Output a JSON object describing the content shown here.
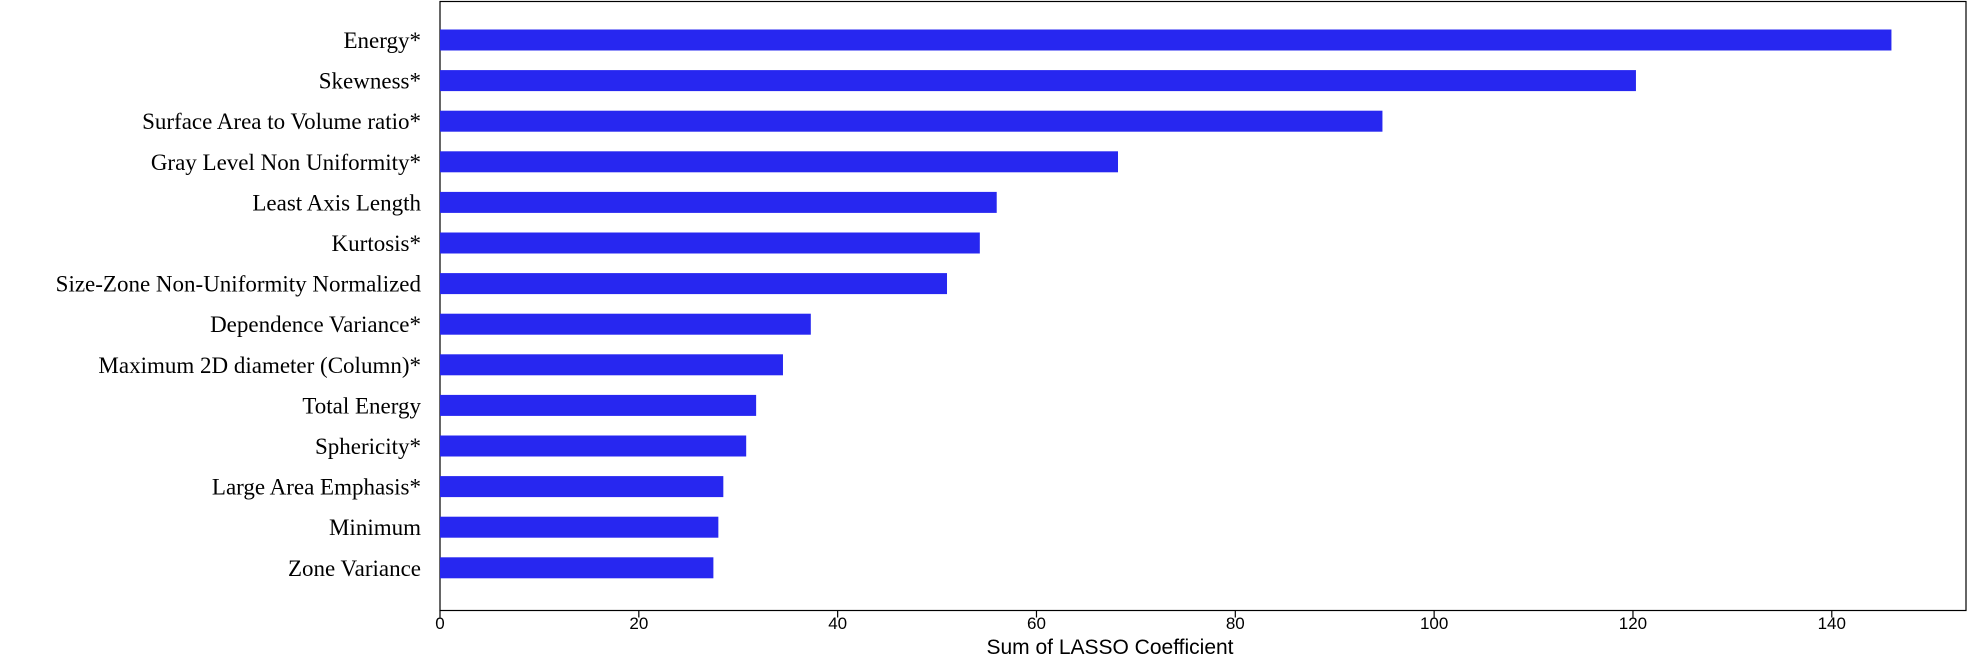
{
  "chart_data": {
    "type": "bar",
    "orientation": "horizontal",
    "categories": [
      "Energy*",
      "Skewness*",
      "Surface Area to Volume ratio*",
      "Gray Level Non Uniformity*",
      "Least Axis Length",
      "Kurtosis*",
      "Size-Zone Non-Uniformity Normalized",
      "Dependence Variance*",
      "Maximum 2D diameter (Column)*",
      "Total Energy",
      "Sphericity*",
      "Large Area Emphasis*",
      "Minimum",
      "Zone Variance"
    ],
    "values": [
      146.0,
      120.3,
      94.8,
      68.2,
      56.0,
      54.3,
      51.0,
      37.3,
      34.5,
      31.8,
      30.8,
      28.5,
      28.0,
      27.5
    ],
    "xlabel": "Sum of LASSO Coefficient",
    "ylabel": "",
    "title": "",
    "xlim": [
      0,
      153.5
    ],
    "xticks": [
      0,
      20,
      40,
      60,
      80,
      100,
      120,
      140
    ],
    "bar_color": "#2727f0",
    "grid": false,
    "legend": "none"
  }
}
